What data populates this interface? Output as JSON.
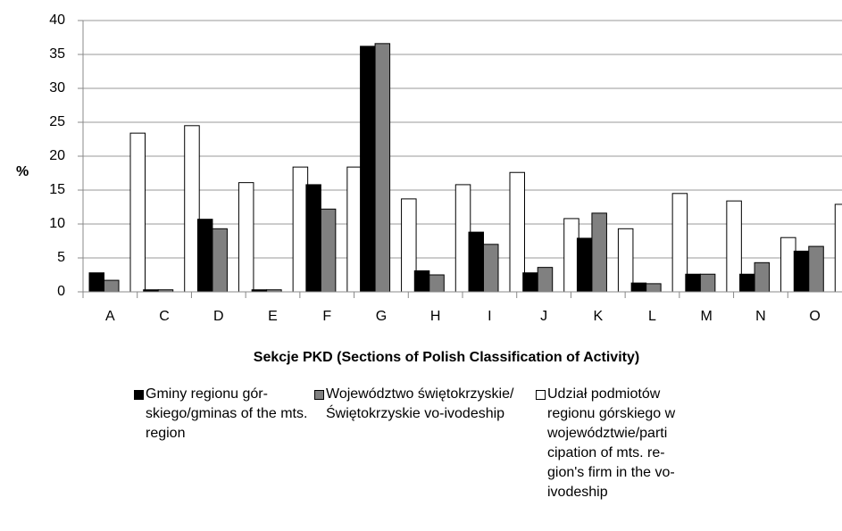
{
  "chart_data": {
    "type": "bar",
    "ylabel": "%",
    "xlabel": "Sekcje PKD (Sections of Polish Classification of Activity)",
    "categories": [
      "A",
      "C",
      "D",
      "E",
      "F",
      "G",
      "H",
      "I",
      "J",
      "K",
      "L",
      "M",
      "N",
      "O"
    ],
    "series": [
      {
        "name": "Gminy regionu gór-skiego/gminas of the mts. region",
        "color": "#000000",
        "values": [
          2.8,
          0.3,
          10.7,
          0.3,
          15.8,
          36.2,
          3.1,
          8.8,
          2.8,
          7.9,
          1.3,
          2.6,
          2.6,
          6.0
        ]
      },
      {
        "name": "Województwo świętokrzyskie/ Świętokrzyskie vo-ivodeship",
        "color": "#808080",
        "values": [
          1.7,
          0.3,
          9.3,
          0.3,
          12.2,
          36.6,
          2.5,
          7.0,
          3.6,
          11.6,
          1.2,
          2.6,
          4.3,
          6.7
        ]
      },
      {
        "name": "Udział podmiotów regionu górskiego w województwie/parti cipation of mts. re-gion's firm in the vo-ivodeship",
        "color": "#ffffff",
        "values": [
          23.4,
          24.5,
          16.1,
          18.4,
          18.4,
          13.7,
          15.8,
          17.6,
          10.8,
          9.3,
          14.5,
          13.4,
          8.0,
          12.9
        ]
      }
    ],
    "ylim": [
      0,
      40
    ],
    "yticks": [
      0,
      5,
      10,
      15,
      20,
      25,
      30,
      35,
      40
    ],
    "grid": true
  }
}
